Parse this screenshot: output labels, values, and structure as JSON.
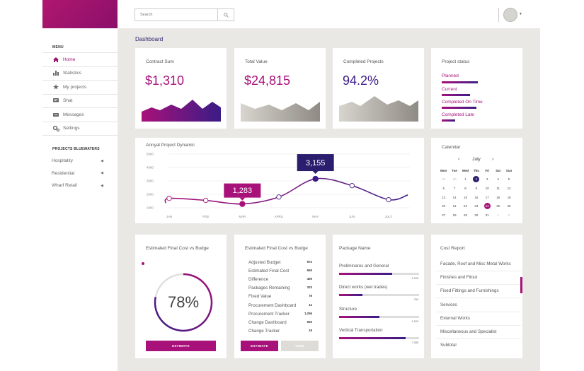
{
  "sidebar": {
    "menu_heading": "MENU",
    "items": [
      {
        "label": "Home",
        "icon": "home-icon"
      },
      {
        "label": "Statistics",
        "icon": "bar-chart-icon"
      },
      {
        "label": "My projects",
        "icon": "star-icon"
      },
      {
        "label": "Shat",
        "icon": "chat-icon"
      },
      {
        "label": "Messages",
        "icon": "messages-icon"
      },
      {
        "label": "Settings",
        "icon": "gears-icon"
      }
    ],
    "projects_heading": "PROJECTS BLUEWATERS",
    "projects": [
      "Hospitality",
      "Residential",
      "Wharf Retail"
    ]
  },
  "header": {
    "search_placeholder": "Search"
  },
  "main": {
    "title": "Dashboard",
    "contract_sum": {
      "title": "Contract Sum",
      "value": "$1,310"
    },
    "total_value": {
      "title": "Total Value",
      "value": "$24,815"
    },
    "completed_projects": {
      "title": "Completed Projects",
      "value": "94.2%"
    },
    "project_status": {
      "title": "Project status",
      "items": [
        {
          "label": "Planned",
          "progress": 0.51
        },
        {
          "label": "Current",
          "progress": 0.4
        },
        {
          "label": "Completed On Time",
          "progress": 0.49
        },
        {
          "label": "Completed Late",
          "progress": 0.19
        }
      ]
    },
    "annual": {
      "title": "Annyal Project Dynamic",
      "callout_1": "1,283",
      "callout_2": "3,155"
    },
    "calendar": {
      "title": "Calendar",
      "month": "July",
      "weekdays": [
        "Mon",
        "Tue",
        "Wed",
        "Thu",
        "Fri",
        "Sat",
        "Sun"
      ],
      "weeks": [
        [
          "29",
          "30",
          "1",
          "2",
          "3",
          "4",
          "5"
        ],
        [
          "6",
          "7",
          "8",
          "9",
          "10",
          "11",
          "12"
        ],
        [
          "13",
          "14",
          "15",
          "16",
          "17",
          "18",
          "19"
        ],
        [
          "20",
          "21",
          "22",
          "23",
          "24",
          "25",
          "26"
        ],
        [
          "27",
          "28",
          "29",
          "30",
          "31",
          "1",
          "2"
        ]
      ],
      "today": "2",
      "selected": "24"
    },
    "est_cost_donut": {
      "title": "Estimated Final Cost vs Budge",
      "percent_label": "78%",
      "percent": 78,
      "button": "ESTIMATE"
    },
    "est_cost_list": {
      "title": "Estimated Final Cost vs Budge",
      "rows": [
        {
          "label": "Adjusted Budget",
          "value": "972"
        },
        {
          "label": "Estimated Final Cost",
          "value": "650"
        },
        {
          "label": "Difference",
          "value": "400"
        },
        {
          "label": "Packages Remaining",
          "value": "323"
        },
        {
          "label": "Fixed Value",
          "value": "78"
        },
        {
          "label": "Procurement Dashboard",
          "value": "12"
        },
        {
          "label": "Procurement Tracker",
          "value": "1,256"
        },
        {
          "label": "Change Dashboard",
          "value": "620"
        },
        {
          "label": "Change Tracker",
          "value": "19"
        }
      ],
      "estimate_button": "ESTIMATE",
      "view_button": "VIEW"
    },
    "package": {
      "title": "Package Name",
      "items": [
        {
          "label": "Preliminares and General",
          "value": "1,200",
          "progress": 0.66
        },
        {
          "label": "Direct works (wet trades)",
          "value": "760",
          "progress": 0.29
        },
        {
          "label": "Structure",
          "value": "1,200",
          "progress": 0.5
        },
        {
          "label": "Vertical Transportation",
          "value": "7,385",
          "progress": 0.83
        }
      ]
    },
    "cost_report": {
      "title": "Cost Report",
      "items": [
        "Facade, Roof and Misc Metal Works",
        "Finishes and Fitout",
        "Fixed Fittings and Furnishings",
        "Services",
        "External Works",
        "Miscellaneous and Specialist",
        "Subtotal"
      ]
    }
  },
  "chart_data": {
    "type": "line",
    "title": "Annyal Project Dynamic",
    "categories": [
      "JAN",
      "FEB",
      "MAR",
      "APRIL",
      "MAY",
      "JUN",
      "JULY"
    ],
    "y_ticks": [
      "5000",
      "4000",
      "3000",
      "2000",
      "1000"
    ],
    "ylim": [
      1000,
      5000
    ],
    "series": [
      {
        "values": [
          1700,
          1550,
          1283,
          1800,
          3155,
          2650,
          1600
        ]
      }
    ]
  },
  "colors": {
    "accent": "#a8117a",
    "accent_dark": "#3a1c86",
    "page_bg": "#e9e8e5"
  }
}
